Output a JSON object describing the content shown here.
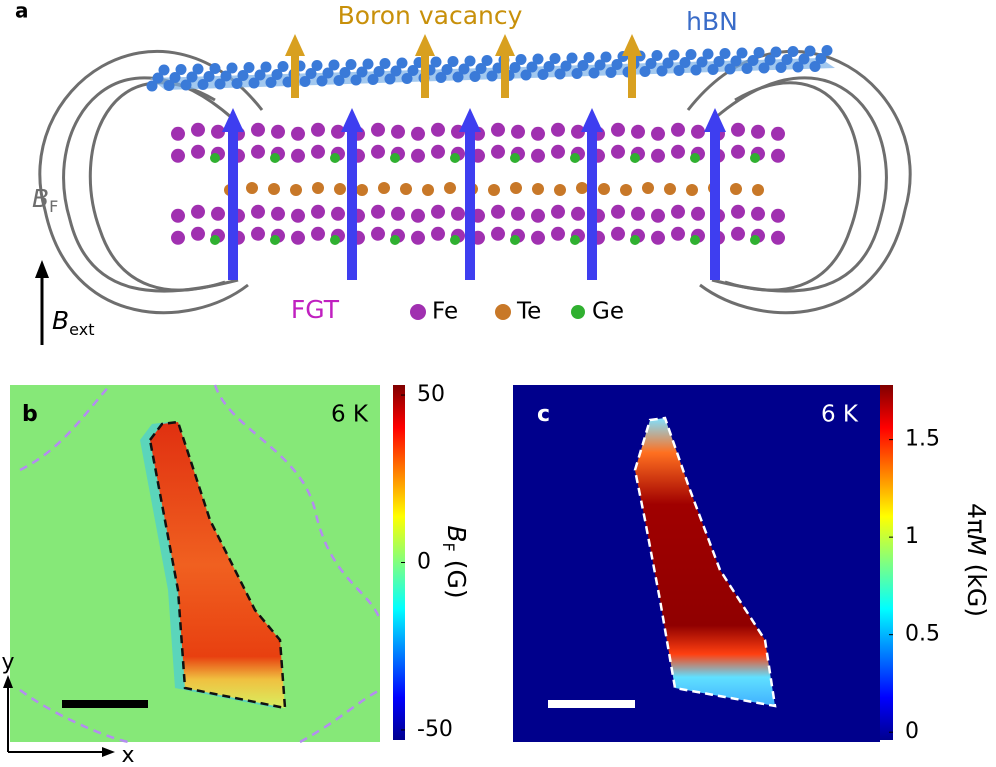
{
  "panel_a": {
    "label": "a",
    "boron_vacancy": "Boron vacancy",
    "hbn": "hBN",
    "field_symbol": "B",
    "field_subscript": "F",
    "external_symbol": "B",
    "external_subscript": "ext",
    "material": "FGT",
    "legend": [
      "Fe",
      "Te",
      "Ge"
    ]
  },
  "panel_b": {
    "label": "b",
    "temperature": "6 K",
    "colorbar": {
      "lim": [
        -53,
        53
      ],
      "ticks": [
        50,
        0,
        -50
      ],
      "label_symbol": "B",
      "label_subscript": "F",
      "label_unit": "(G)"
    }
  },
  "panel_c": {
    "label": "c",
    "temperature": "6 K",
    "colorbar": {
      "lim": [
        -0.04,
        1.78
      ],
      "ticks": [
        1.5,
        1,
        0.5,
        0
      ],
      "label_prefix": "4π",
      "label_symbol": "M",
      "label_unit": "(kG)"
    }
  },
  "axes": {
    "y": "y",
    "x": "x"
  }
}
